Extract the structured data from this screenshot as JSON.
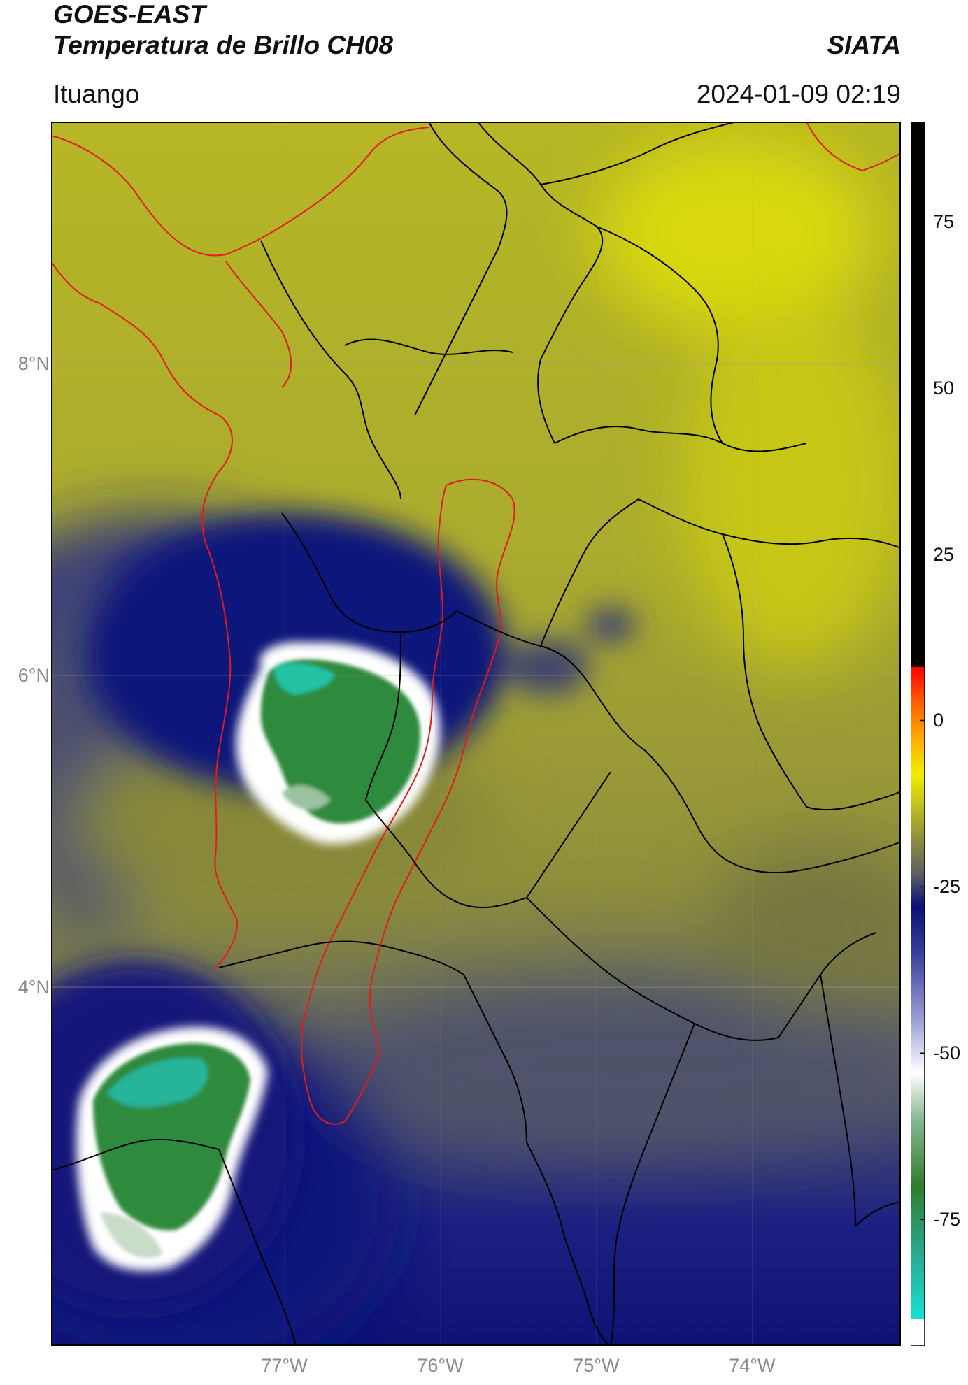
{
  "header": {
    "satellite": "GOES-EAST",
    "product": "Temperatura de Brillo CH08",
    "brand": "SIATA",
    "region": "Ituango",
    "datetime": "2024-01-09 02:19"
  },
  "map": {
    "lat_range": [
      1.7,
      9.55
    ],
    "lon_range": [
      -78.5,
      -73.05
    ],
    "lat_ticks": [
      {
        "value": 8,
        "label": "8°N"
      },
      {
        "value": 6,
        "label": "6°N"
      },
      {
        "value": 4,
        "label": "4°N"
      }
    ],
    "lon_ticks": [
      {
        "value": -77,
        "label": "77°W"
      },
      {
        "value": -76,
        "label": "76°W"
      },
      {
        "value": -75,
        "label": "75°W"
      },
      {
        "value": -74,
        "label": "74°W"
      }
    ],
    "grid": true,
    "boundary_colors": {
      "national": "#e31b1b",
      "departmental": "#000000"
    }
  },
  "colorbar": {
    "range": [
      -94,
      90
    ],
    "ticks": [
      {
        "value": 75,
        "label": "75"
      },
      {
        "value": 50,
        "label": "50"
      },
      {
        "value": 25,
        "label": "25"
      },
      {
        "value": 0,
        "label": "0"
      },
      {
        "value": -25,
        "label": "-25"
      },
      {
        "value": -50,
        "label": "-50"
      },
      {
        "value": -75,
        "label": "-75"
      }
    ],
    "stops": [
      {
        "value": -94,
        "color": "#ffffff"
      },
      {
        "value": -90,
        "color": "#ffffff"
      },
      {
        "value": -89.9,
        "color": "#16e0d2"
      },
      {
        "value": -80,
        "color": "#2aa88f"
      },
      {
        "value": -70,
        "color": "#2e7d2e"
      },
      {
        "value": -60,
        "color": "#88b890"
      },
      {
        "value": -53,
        "color": "#ffffff"
      },
      {
        "value": -45,
        "color": "#9aa0d6"
      },
      {
        "value": -35,
        "color": "#3a3f9c"
      },
      {
        "value": -28,
        "color": "#0c1075"
      },
      {
        "value": -23,
        "color": "#5c5f62"
      },
      {
        "value": -18,
        "color": "#8c8d3e"
      },
      {
        "value": -12,
        "color": "#c8c81a"
      },
      {
        "value": -8,
        "color": "#f2ee00"
      },
      {
        "value": -3,
        "color": "#ffb000"
      },
      {
        "value": 3,
        "color": "#ff5a00"
      },
      {
        "value": 8,
        "color": "#ff0000"
      },
      {
        "value": 8.1,
        "color": "#000000"
      },
      {
        "value": 90,
        "color": "#000000"
      }
    ]
  }
}
